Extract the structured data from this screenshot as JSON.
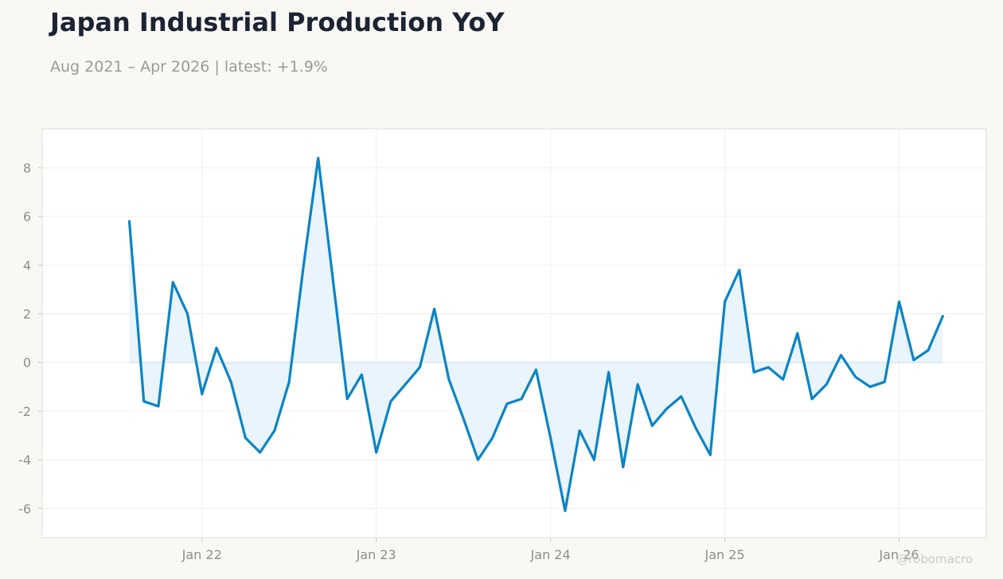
{
  "header": {
    "title": "Japan Industrial Production YoY",
    "subtitle": "Aug 2021 – Apr 2026 | latest: +1.9%"
  },
  "watermark": "@robomacro",
  "colors": {
    "line": "#0a84c6",
    "fill": "#e6f2fb",
    "grid": "#efefed",
    "frame": "#dedbd3",
    "background": "#f9f8f5",
    "tick_text": "#8e8e8a"
  },
  "chart_data": {
    "type": "area",
    "title": "Japan Industrial Production YoY",
    "xlabel": "",
    "ylabel": "",
    "ylim": [
      -7.2,
      9.6
    ],
    "yticks": [
      -6,
      -4,
      -2,
      0,
      2,
      4,
      6,
      8
    ],
    "xlim": [
      "2021-02",
      "2026-07"
    ],
    "xticks": [
      {
        "label": "Jan 22",
        "date": "2022-01"
      },
      {
        "label": "Jan 23",
        "date": "2023-01"
      },
      {
        "label": "Jan 24",
        "date": "2024-01"
      },
      {
        "label": "Jan 25",
        "date": "2025-01"
      },
      {
        "label": "Jan 26",
        "date": "2026-01"
      }
    ],
    "grid": true,
    "x": [
      "2021-08",
      "2021-09",
      "2021-10",
      "2021-11",
      "2021-12",
      "2022-01",
      "2022-02",
      "2022-03",
      "2022-04",
      "2022-05",
      "2022-06",
      "2022-07",
      "2022-08",
      "2022-09",
      "2022-10",
      "2022-11",
      "2022-12",
      "2023-01",
      "2023-02",
      "2023-03",
      "2023-04",
      "2023-05",
      "2023-06",
      "2023-07",
      "2023-08",
      "2023-09",
      "2023-10",
      "2023-11",
      "2023-12",
      "2024-01",
      "2024-02",
      "2024-03",
      "2024-04",
      "2024-05",
      "2024-06",
      "2024-07",
      "2024-08",
      "2024-09",
      "2024-10",
      "2024-11",
      "2024-12",
      "2025-01",
      "2025-02",
      "2025-03",
      "2025-04",
      "2025-05",
      "2025-06",
      "2025-07",
      "2025-08",
      "2025-09",
      "2025-10",
      "2025-11",
      "2025-12",
      "2026-01",
      "2026-02",
      "2026-03",
      "2026-04"
    ],
    "series": [
      {
        "values": [
          5.8,
          -1.6,
          -1.8,
          3.3,
          2.0,
          -1.3,
          0.6,
          -0.8,
          -3.1,
          -3.7,
          -2.8,
          -0.8,
          4.0,
          8.4,
          3.5,
          -1.5,
          -0.5,
          -3.7,
          -1.6,
          -0.9,
          -0.2,
          2.2,
          -0.7,
          -2.3,
          -4.0,
          -3.1,
          -1.7,
          -1.5,
          -0.3,
          -3.1,
          -6.1,
          -2.8,
          -4.0,
          -0.4,
          -4.3,
          -0.9,
          -2.6,
          -1.9,
          -1.4,
          -2.7,
          -3.8,
          2.5,
          3.8,
          -0.4,
          -0.2,
          -0.7,
          1.2,
          -1.5,
          -0.9,
          0.3,
          -0.6,
          -1.0,
          -0.8,
          2.5,
          0.1,
          0.5,
          1.9
        ]
      }
    ]
  }
}
